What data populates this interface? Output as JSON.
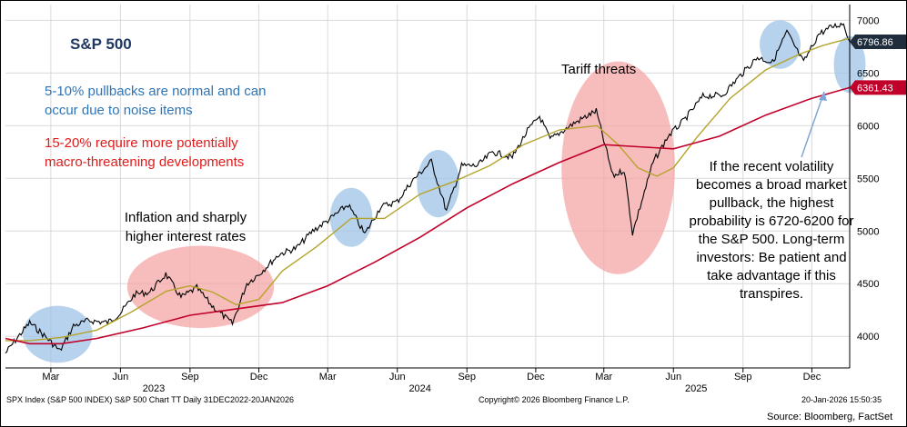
{
  "chart_data": {
    "type": "line",
    "title": "S&P 500",
    "ylim": [
      3700,
      7150
    ],
    "xlim": [
      "2022-12-31",
      "2026-01-20"
    ],
    "y_ticks": [
      4000,
      4500,
      5000,
      5500,
      6000,
      6500,
      7000
    ],
    "x_ticks": [
      {
        "label": "Mar",
        "date": "2023-03-01"
      },
      {
        "label": "Jun",
        "date": "2023-06-01"
      },
      {
        "label": "Sep",
        "date": "2023-09-01"
      },
      {
        "label": "Dec",
        "date": "2023-12-01"
      },
      {
        "label": "Mar",
        "date": "2024-03-01"
      },
      {
        "label": "Jun",
        "date": "2024-06-01"
      },
      {
        "label": "Sep",
        "date": "2024-09-01"
      },
      {
        "label": "Dec",
        "date": "2024-12-01"
      },
      {
        "label": "Mar",
        "date": "2025-03-01"
      },
      {
        "label": "Jun",
        "date": "2025-06-01"
      },
      {
        "label": "Sep",
        "date": "2025-09-01"
      },
      {
        "label": "Dec",
        "date": "2025-12-01"
      }
    ],
    "year_labels": [
      {
        "label": "2023",
        "date": "2023-07-15"
      },
      {
        "label": "2024",
        "date": "2024-07-01"
      },
      {
        "label": "2025",
        "date": "2025-07-01"
      }
    ],
    "last_price_label": "6796.86",
    "ma_label": "6361.43",
    "grid": true,
    "series": [
      {
        "kind": "price",
        "color": "#000000",
        "points": [
          [
            "2022-12-31",
            3840
          ],
          [
            "2023-01-15",
            3980
          ],
          [
            "2023-02-01",
            4130
          ],
          [
            "2023-02-20",
            4010
          ],
          [
            "2023-03-13",
            3860
          ],
          [
            "2023-03-31",
            4100
          ],
          [
            "2023-04-20",
            4150
          ],
          [
            "2023-05-15",
            4130
          ],
          [
            "2023-06-01",
            4220
          ],
          [
            "2023-06-20",
            4400
          ],
          [
            "2023-07-10",
            4420
          ],
          [
            "2023-07-31",
            4590
          ],
          [
            "2023-08-20",
            4370
          ],
          [
            "2023-09-10",
            4460
          ],
          [
            "2023-09-30",
            4290
          ],
          [
            "2023-10-27",
            4120
          ],
          [
            "2023-11-15",
            4500
          ],
          [
            "2023-12-01",
            4590
          ],
          [
            "2023-12-28",
            4780
          ],
          [
            "2024-01-20",
            4840
          ],
          [
            "2024-02-10",
            5000
          ],
          [
            "2024-03-05",
            5120
          ],
          [
            "2024-03-28",
            5250
          ],
          [
            "2024-04-19",
            4970
          ],
          [
            "2024-05-10",
            5230
          ],
          [
            "2024-06-01",
            5280
          ],
          [
            "2024-06-20",
            5470
          ],
          [
            "2024-07-16",
            5660
          ],
          [
            "2024-08-05",
            5190
          ],
          [
            "2024-08-25",
            5620
          ],
          [
            "2024-09-15",
            5620
          ],
          [
            "2024-10-05",
            5750
          ],
          [
            "2024-10-31",
            5700
          ],
          [
            "2024-11-20",
            5950
          ],
          [
            "2024-12-06",
            6090
          ],
          [
            "2024-12-20",
            5870
          ],
          [
            "2025-01-20",
            6020
          ],
          [
            "2025-02-19",
            6140
          ],
          [
            "2025-03-13",
            5520
          ],
          [
            "2025-03-28",
            5580
          ],
          [
            "2025-04-08",
            4980
          ],
          [
            "2025-04-20",
            5280
          ],
          [
            "2025-05-05",
            5650
          ],
          [
            "2025-05-25",
            5900
          ],
          [
            "2025-06-15",
            6050
          ],
          [
            "2025-07-10",
            6280
          ],
          [
            "2025-08-05",
            6290
          ],
          [
            "2025-08-25",
            6450
          ],
          [
            "2025-09-20",
            6650
          ],
          [
            "2025-10-10",
            6600
          ],
          [
            "2025-10-29",
            6890
          ],
          [
            "2025-11-20",
            6600
          ],
          [
            "2025-12-10",
            6870
          ],
          [
            "2025-12-28",
            6940
          ],
          [
            "2026-01-12",
            6970
          ],
          [
            "2026-01-20",
            6796.86
          ]
        ]
      },
      {
        "kind": "ma50",
        "color": "#b5a42b",
        "points": [
          [
            "2022-12-31",
            3960
          ],
          [
            "2023-02-01",
            3960
          ],
          [
            "2023-03-15",
            3990
          ],
          [
            "2023-05-01",
            4060
          ],
          [
            "2023-06-15",
            4230
          ],
          [
            "2023-08-01",
            4430
          ],
          [
            "2023-09-01",
            4480
          ],
          [
            "2023-10-01",
            4420
          ],
          [
            "2023-11-01",
            4300
          ],
          [
            "2023-12-01",
            4350
          ],
          [
            "2024-01-01",
            4620
          ],
          [
            "2024-02-15",
            4850
          ],
          [
            "2024-04-01",
            5120
          ],
          [
            "2024-05-15",
            5120
          ],
          [
            "2024-07-01",
            5350
          ],
          [
            "2024-08-15",
            5470
          ],
          [
            "2024-10-01",
            5620
          ],
          [
            "2024-11-15",
            5820
          ],
          [
            "2025-01-01",
            5960
          ],
          [
            "2025-02-20",
            6000
          ],
          [
            "2025-03-20",
            5820
          ],
          [
            "2025-04-15",
            5600
          ],
          [
            "2025-05-10",
            5520
          ],
          [
            "2025-06-01",
            5600
          ],
          [
            "2025-07-01",
            5880
          ],
          [
            "2025-08-15",
            6260
          ],
          [
            "2025-10-01",
            6530
          ],
          [
            "2025-11-15",
            6680
          ],
          [
            "2025-12-15",
            6760
          ],
          [
            "2026-01-20",
            6830
          ]
        ]
      },
      {
        "kind": "ma200",
        "color": "#c0002a",
        "points": [
          [
            "2022-12-31",
            3980
          ],
          [
            "2023-02-01",
            3930
          ],
          [
            "2023-03-15",
            3930
          ],
          [
            "2023-05-01",
            3980
          ],
          [
            "2023-07-01",
            4080
          ],
          [
            "2023-09-01",
            4200
          ],
          [
            "2023-11-01",
            4260
          ],
          [
            "2024-01-01",
            4320
          ],
          [
            "2024-03-01",
            4480
          ],
          [
            "2024-05-01",
            4700
          ],
          [
            "2024-07-01",
            4940
          ],
          [
            "2024-09-01",
            5220
          ],
          [
            "2024-11-01",
            5450
          ],
          [
            "2025-01-01",
            5650
          ],
          [
            "2025-03-01",
            5820
          ],
          [
            "2025-04-15",
            5800
          ],
          [
            "2025-06-01",
            5780
          ],
          [
            "2025-08-01",
            5900
          ],
          [
            "2025-10-01",
            6100
          ],
          [
            "2025-12-01",
            6260
          ],
          [
            "2026-01-20",
            6361.43
          ]
        ]
      }
    ],
    "highlights": [
      {
        "color": "#9ec3e6",
        "date": "2023-03-10",
        "value": 4020,
        "rx_days": 46,
        "ry_value": 270
      },
      {
        "color": "#f4a6a6",
        "date": "2023-09-15",
        "value": 4470,
        "rx_days": 97,
        "ry_value": 390
      },
      {
        "color": "#9ec3e6",
        "date": "2024-04-01",
        "value": 5130,
        "rx_days": 28,
        "ry_value": 280
      },
      {
        "color": "#9ec3e6",
        "date": "2024-07-25",
        "value": 5450,
        "rx_days": 28,
        "ry_value": 320
      },
      {
        "color": "#f4a6a6",
        "date": "2025-03-20",
        "value": 5600,
        "rx_days": 75,
        "ry_value": 1010
      },
      {
        "color": "#9ec3e6",
        "date": "2025-10-20",
        "value": 6770,
        "rx_days": 27,
        "ry_value": 230
      },
      {
        "color": "#9ec3e6",
        "date": "2026-01-20",
        "value": 6580,
        "rx_days": 21,
        "ry_value": 270
      }
    ],
    "annotations": {
      "blue_note": "5-10% pullbacks are normal and can occur due to noise items",
      "red_note": "15-20% require more potentially macro-threatening developments",
      "inflation_note": "Inflation and sharply higher interest rates",
      "tariff_note": "Tariff threats",
      "right_note": "If the recent volatility becomes a broad market pullback, the highest probability is 6720-6200 for the S&P 500.  Long-term investors: Be patient and take advantage if this transpires."
    },
    "footer": {
      "left": "SPX Index (S&P 500 INDEX) S&P 500 Chart TT Daily 31DEC2022-20JAN2026",
      "middle": "Copyright© 2026 Bloomberg Finance L.P.",
      "right": "20-Jan-2026 15:50:35",
      "source": "Source: Bloomberg, FactSet"
    },
    "colors": {
      "last_price_badge": "#1f2d3d",
      "ma_badge": "#c0002a",
      "arrow": "#7fa7d4"
    }
  }
}
